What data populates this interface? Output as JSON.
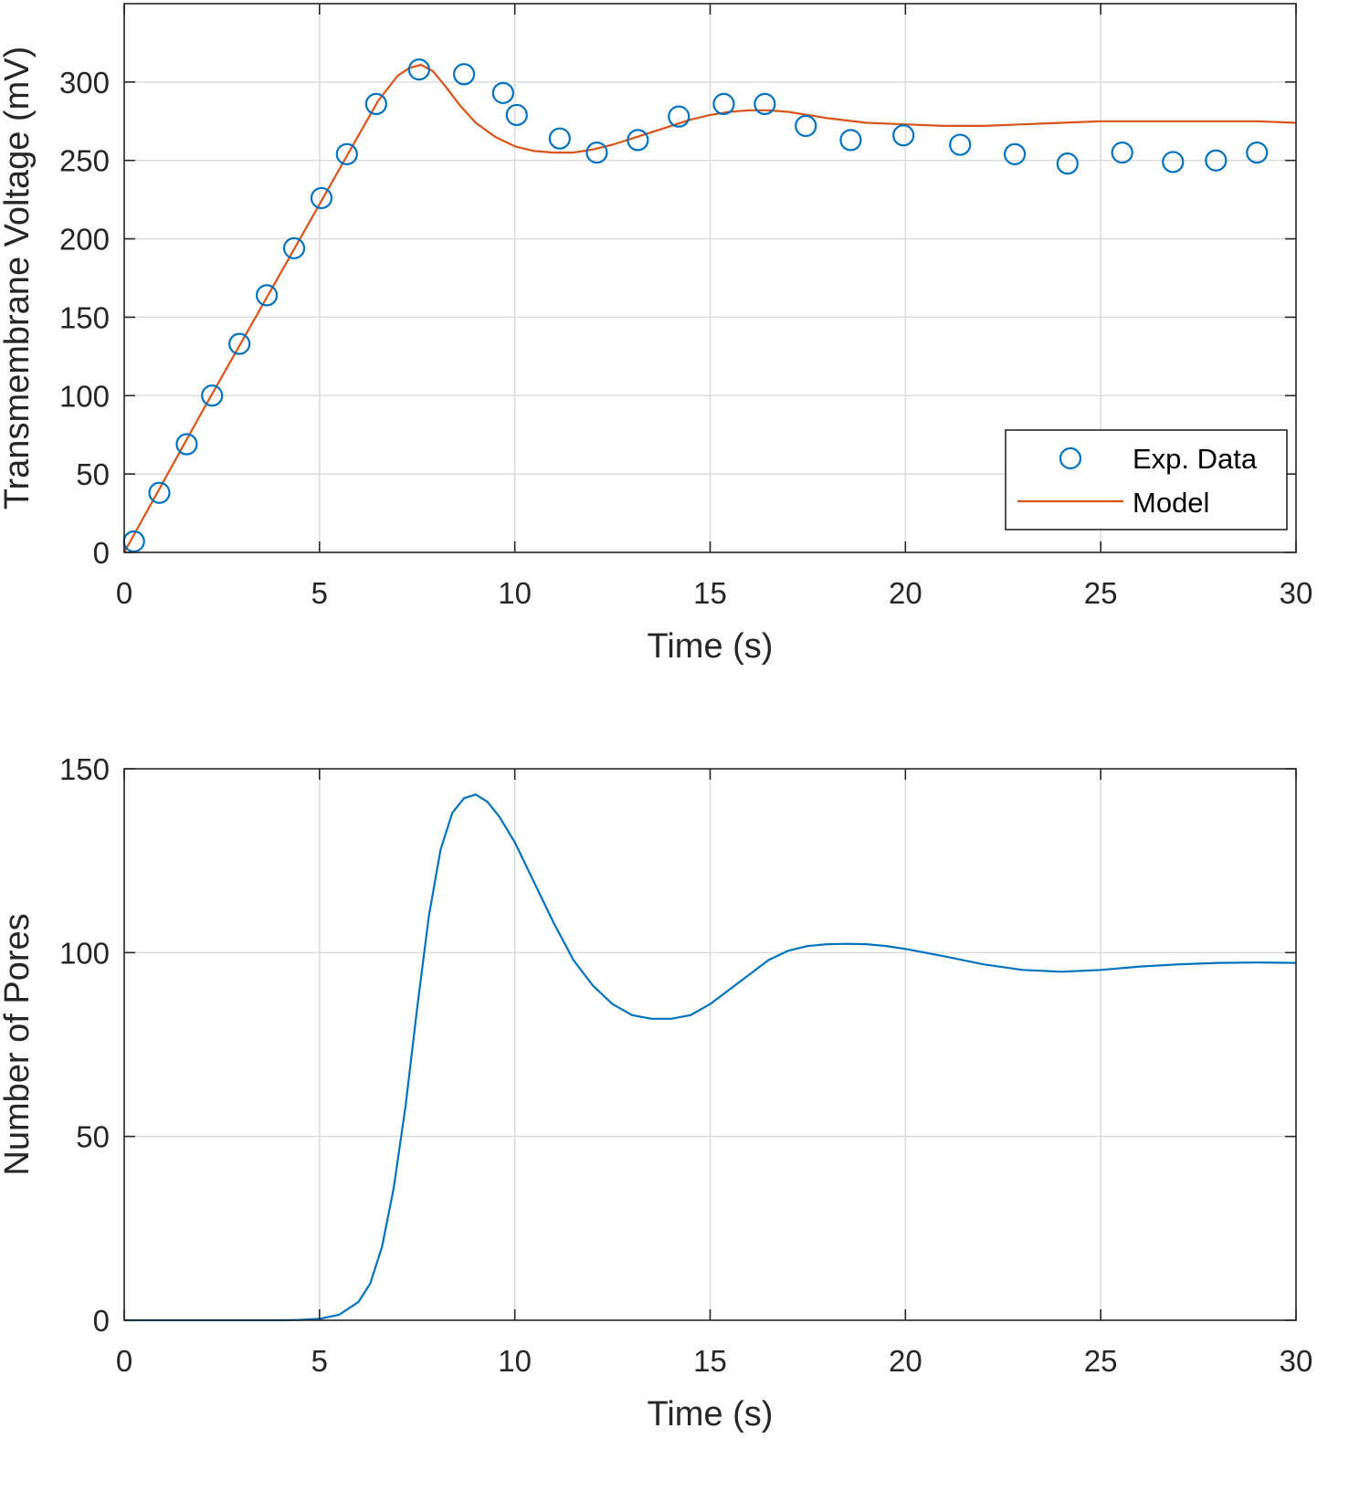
{
  "colors": {
    "model": "#d95319",
    "data": "#0072bd",
    "pores": "#0072bd",
    "grid": "#dcdcdc",
    "axis": "#262626"
  },
  "chart_data": [
    {
      "type": "line",
      "xlabel": "Time (s)",
      "ylabel": "Transmembrane Voltage (mV)",
      "xlim": [
        0,
        30
      ],
      "ylim": [
        0,
        350
      ],
      "xticks": [
        0,
        5,
        10,
        15,
        20,
        25,
        30
      ],
      "yticks": [
        0,
        50,
        100,
        150,
        200,
        250,
        300
      ],
      "grid": true,
      "legend": {
        "position": "bottom-right",
        "entries": [
          "Exp. Data",
          "Model"
        ]
      },
      "series": [
        {
          "name": "Exp. Data",
          "kind": "scatter",
          "marker": "circle",
          "x": [
            0.25,
            0.9,
            1.6,
            2.25,
            2.95,
            3.65,
            4.35,
            5.05,
            5.7,
            6.45,
            7.55,
            8.7,
            9.7,
            10.05,
            11.15,
            12.1,
            13.15,
            14.2,
            15.35,
            16.4,
            17.45,
            18.6,
            19.95,
            21.4,
            22.8,
            24.15,
            25.55,
            26.85,
            27.95,
            29.0
          ],
          "y": [
            7,
            38,
            69,
            100,
            133,
            164,
            194,
            226,
            254,
            286,
            308,
            305,
            293,
            279,
            264,
            255,
            263,
            278,
            286,
            286,
            272,
            263,
            266,
            260,
            254,
            248,
            255,
            249,
            250,
            255
          ]
        },
        {
          "name": "Model",
          "kind": "line",
          "x": [
            0,
            1,
            2,
            3,
            4,
            5,
            6,
            6.5,
            7,
            7.3,
            7.6,
            7.9,
            8.2,
            8.6,
            9,
            9.5,
            10,
            10.5,
            11,
            11.5,
            12,
            12.5,
            13,
            13.5,
            14,
            14.5,
            15,
            15.5,
            16,
            16.5,
            17,
            17.5,
            18,
            19,
            20,
            21,
            22,
            23,
            24,
            25,
            26,
            27,
            28,
            29,
            30
          ],
          "y": [
            0,
            45,
            90,
            134,
            178,
            222,
            266,
            288,
            304,
            309,
            311,
            307,
            298,
            285,
            274,
            265,
            259,
            256,
            255,
            255,
            257,
            260,
            264,
            268,
            272,
            276,
            279,
            281,
            282,
            282,
            281,
            279,
            277,
            274,
            273,
            272,
            272,
            273,
            274,
            275,
            275,
            275,
            275,
            275,
            274
          ]
        }
      ]
    },
    {
      "type": "line",
      "xlabel": "Time (s)",
      "ylabel": "Number of Pores",
      "xlim": [
        0,
        30
      ],
      "ylim": [
        0,
        150
      ],
      "xticks": [
        0,
        5,
        10,
        15,
        20,
        25,
        30
      ],
      "yticks": [
        0,
        50,
        100,
        150
      ],
      "grid": true,
      "series": [
        {
          "name": "Number of Pores",
          "kind": "line",
          "x": [
            0,
            1,
            2,
            3,
            4,
            4.5,
            5,
            5.5,
            6,
            6.3,
            6.6,
            6.9,
            7.2,
            7.5,
            7.8,
            8.1,
            8.4,
            8.7,
            9,
            9.3,
            9.6,
            10,
            10.5,
            11,
            11.5,
            12,
            12.5,
            13,
            13.5,
            14,
            14.5,
            15,
            15.5,
            16,
            16.5,
            17,
            17.5,
            18,
            18.5,
            19,
            19.5,
            20,
            21,
            22,
            23,
            24,
            25,
            26,
            27,
            28,
            29,
            30
          ],
          "y": [
            0,
            0,
            0,
            0,
            0,
            0.1,
            0.4,
            1.5,
            5,
            10,
            20,
            36,
            58,
            85,
            110,
            128,
            138,
            142,
            143,
            141,
            137,
            130,
            119,
            108,
            98,
            91,
            86,
            83,
            82,
            82,
            83,
            86,
            90,
            94,
            98,
            100.5,
            101.8,
            102.3,
            102.4,
            102.3,
            101.8,
            101,
            99,
            96.8,
            95.3,
            94.8,
            95.3,
            96.2,
            96.8,
            97.2,
            97.3,
            97.2
          ]
        }
      ]
    }
  ]
}
